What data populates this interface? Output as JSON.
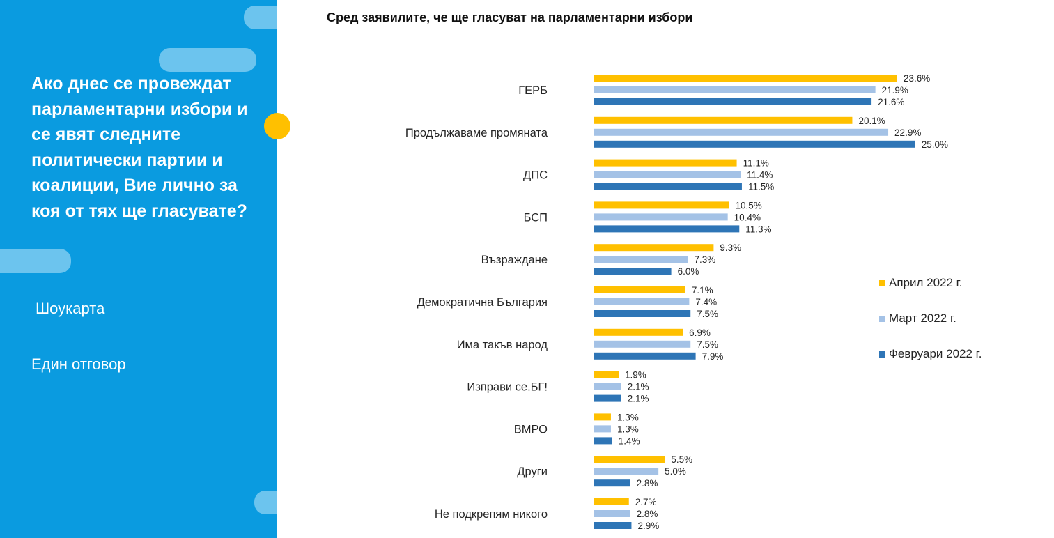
{
  "sidebar": {
    "question": "Ако днес се провеждат парламентарни избори и се явят следните политически партии и коалиции, Вие лично за коя от тях ще гласувате?",
    "method": "Шоукарта",
    "answer_type": "Един отговор"
  },
  "chart_data": {
    "type": "bar",
    "orientation": "horizontal",
    "title": "Сред заявилите, че ще гласуват на парламентарни избори",
    "categories": [
      "ГЕРБ",
      "Продължаваме промяната",
      "ДПС",
      "БСП",
      "Възраждане",
      "Демократична България",
      "Има такъв народ",
      "Изправи се.БГ!",
      "ВМРО",
      "Други",
      "Не подкрепям никого"
    ],
    "series": [
      {
        "name": "Април 2022 г.",
        "color": "#ffc000",
        "values": [
          23.6,
          20.1,
          11.1,
          10.5,
          9.3,
          7.1,
          6.9,
          1.9,
          1.3,
          5.5,
          2.7
        ]
      },
      {
        "name": "Март 2022 г.",
        "color": "#a4c2e6",
        "values": [
          21.9,
          22.9,
          11.4,
          10.4,
          7.3,
          7.4,
          7.5,
          2.1,
          1.3,
          5.0,
          2.8
        ]
      },
      {
        "name": "Февруари 2022 г.",
        "color": "#2e75b6",
        "values": [
          21.6,
          25.0,
          11.5,
          11.3,
          6.0,
          7.5,
          7.9,
          2.1,
          1.4,
          2.8,
          2.9
        ]
      }
    ],
    "value_format": "%",
    "xlim": [
      0,
      25
    ],
    "grid": false,
    "legend_position": "right"
  }
}
